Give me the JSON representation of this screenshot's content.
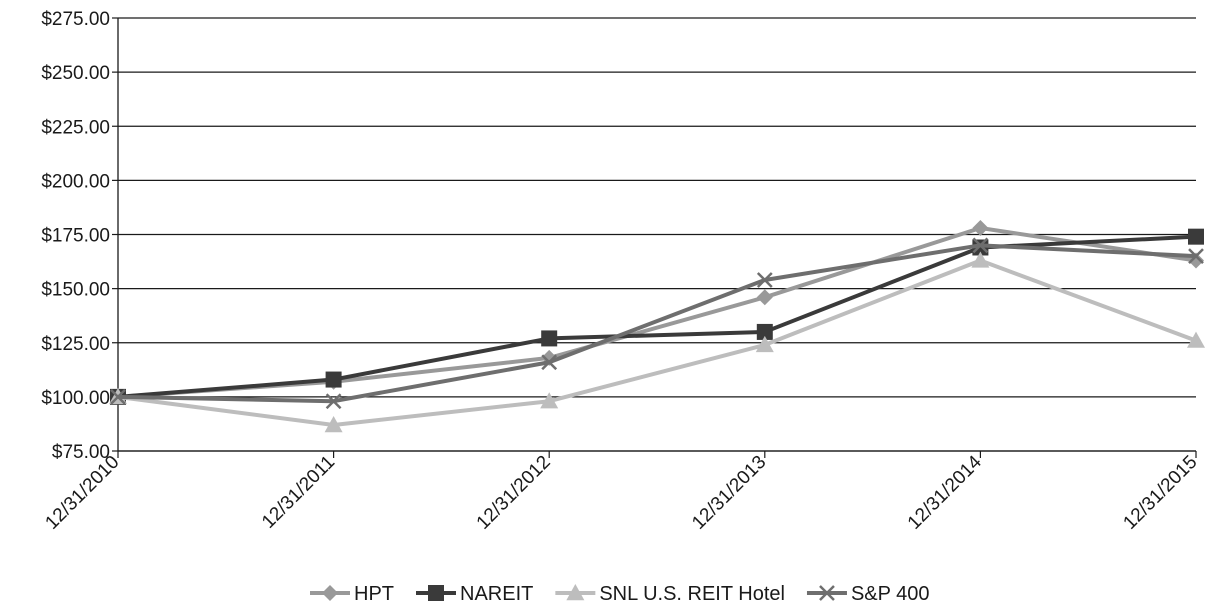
{
  "chart_data": {
    "type": "line",
    "title": "",
    "xlabel": "",
    "ylabel": "",
    "categories": [
      "12/31/2010",
      "12/31/2011",
      "12/31/2012",
      "12/31/2013",
      "12/31/2014",
      "12/31/2015"
    ],
    "y_ticks": [
      "$75.00",
      "$100.00",
      "$125.00",
      "$150.00",
      "$175.00",
      "$200.00",
      "$225.00",
      "$250.00",
      "$275.00"
    ],
    "ylim": [
      75,
      275
    ],
    "grid": true,
    "legend_position": "bottom",
    "series": [
      {
        "name": "HPT",
        "marker": "diamond",
        "color": "#999999",
        "values": [
          100,
          107,
          118,
          146,
          178,
          163
        ]
      },
      {
        "name": "NAREIT",
        "marker": "square",
        "color": "#3a3a3a",
        "values": [
          100,
          108,
          127,
          130,
          169,
          174
        ]
      },
      {
        "name": "SNL U.S. REIT Hotel",
        "marker": "triangle",
        "color": "#bdbdbd",
        "values": [
          100,
          87,
          98,
          124,
          163,
          126
        ]
      },
      {
        "name": "S&P 400",
        "marker": "x",
        "color": "#6e6e6e",
        "values": [
          100,
          98,
          116,
          154,
          170,
          165
        ]
      }
    ]
  }
}
